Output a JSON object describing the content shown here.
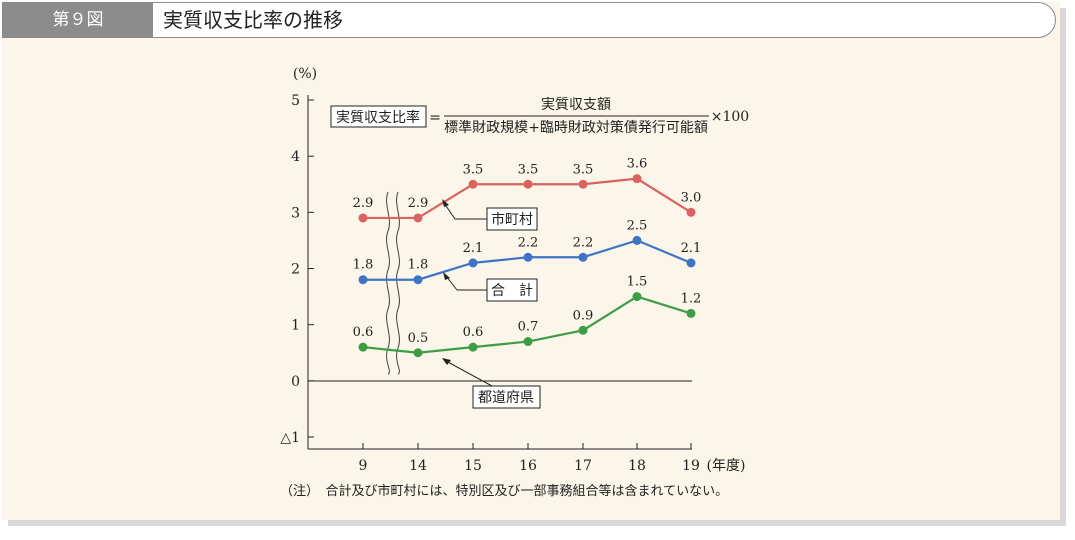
{
  "header": {
    "badge": "第９図",
    "title": "実質収支比率の推移"
  },
  "formula": {
    "boxed_label": "実質収支比率",
    "equals": "=",
    "numerator": "実質収支額",
    "denominator": "標準財政規模+臨時財政対策債発行可能額",
    "multiplier": "×100"
  },
  "note": "（注）　合計及び市町村には、特別区及び一部事務組合等は含まれていない。",
  "chart_data": {
    "type": "line",
    "y_unit": "(%)",
    "x_unit": "(年度)",
    "ylim": [
      -1,
      5
    ],
    "y_ticks": [
      {
        "value": 5,
        "label": "5"
      },
      {
        "value": 4,
        "label": "4"
      },
      {
        "value": 3,
        "label": "3"
      },
      {
        "value": 2,
        "label": "2"
      },
      {
        "value": 1,
        "label": "1"
      },
      {
        "value": 0,
        "label": "0"
      },
      {
        "value": -1,
        "label": "△1"
      }
    ],
    "categories": [
      "9",
      "14",
      "15",
      "16",
      "17",
      "18",
      "19"
    ],
    "axis_break_after": "9",
    "series": [
      {
        "name": "市町村",
        "color": "#d9635e",
        "values": [
          2.9,
          2.9,
          3.5,
          3.5,
          3.5,
          3.6,
          3.0
        ],
        "labels": [
          "2.9",
          "2.9",
          "3.5",
          "3.5",
          "3.5",
          "3.6",
          "3.0"
        ]
      },
      {
        "name": "合　計",
        "color": "#3f74c4",
        "values": [
          1.8,
          1.8,
          2.1,
          2.2,
          2.2,
          2.5,
          2.1
        ],
        "labels": [
          "1.8",
          "1.8",
          "2.1",
          "2.2",
          "2.2",
          "2.5",
          "2.1"
        ]
      },
      {
        "name": "都道府県",
        "color": "#3f9c46",
        "values": [
          0.6,
          0.5,
          0.6,
          0.7,
          0.9,
          1.5,
          1.2
        ],
        "labels": [
          "0.6",
          "0.5",
          "0.6",
          "0.7",
          "0.9",
          "1.5",
          "1.2"
        ]
      }
    ]
  }
}
